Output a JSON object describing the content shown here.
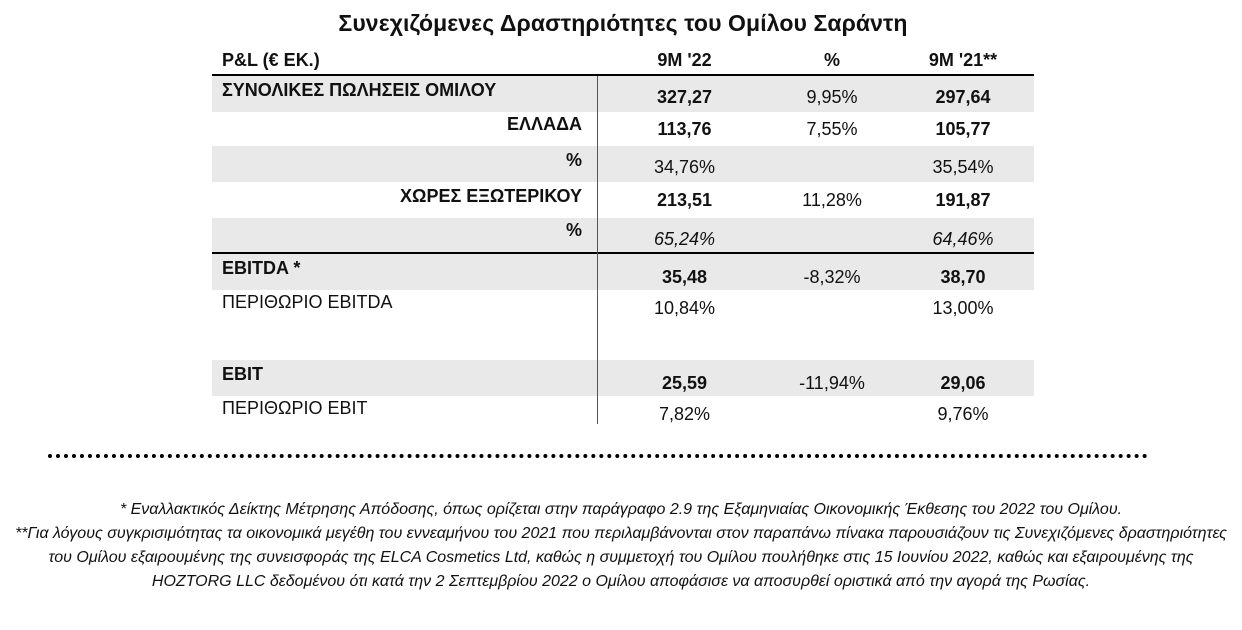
{
  "title": "Συνεχιζόμενες Δραστηριότητες του Ομίλου Σαράντη",
  "header": {
    "label": "P&L (€ ΕΚ.)",
    "col_a": "9M '22",
    "col_pct": "%",
    "col_b": "9M '21**"
  },
  "rows": [
    {
      "label": "ΣΥΝΟΛΙΚΕΣ ΠΩΛΗΣΕΙΣ ΟΜΙΛΟΥ",
      "a": "327,27",
      "pct": "9,95%",
      "b": "297,64"
    },
    {
      "label": "ΕΛΛΑΔΑ",
      "a": "113,76",
      "pct": "7,55%",
      "b": "105,77"
    },
    {
      "label": "%",
      "a": "34,76%",
      "pct": "",
      "b": "35,54%"
    },
    {
      "label": "ΧΩΡΕΣ ΕΞΩΤΕΡΙΚΟΥ",
      "a": "213,51",
      "pct": "11,28%",
      "b": "191,87"
    },
    {
      "label": "%",
      "a": "65,24%",
      "pct": "",
      "b": "64,46%"
    },
    {
      "label": "EBITDA *",
      "a": "35,48",
      "pct": "-8,32%",
      "b": "38,70"
    },
    {
      "label": "ΠΕΡΙΘΩΡΙΟ EBITDA",
      "a": "10,84%",
      "pct": "",
      "b": "13,00%"
    },
    {
      "label": "",
      "a": "",
      "pct": "",
      "b": ""
    },
    {
      "label": "EBIT",
      "a": "25,59",
      "pct": "-11,94%",
      "b": "29,06"
    },
    {
      "label": "ΠΕΡΙΘΩΡΙΟ EBIT",
      "a": "7,82%",
      "pct": "",
      "b": "9,76%"
    }
  ],
  "footnotes": [
    "* Εναλλακτικός Δείκτης Μέτρησης Απόδοσης, όπως ορίζεται στην παράγραφο 2.9 της Εξαμηνιαίας Οικονομικής Έκθεσης του 2022 του Ομίλου.",
    "**Για λόγους συγκρισιμότητας τα οικονομικά μεγέθη του εννεαμήνου του 2021 που περιλαμβάνονται στον παραπάνω πίνακα παρουσιάζουν τις Συνεχιζόμενες δραστηριότητες του Ομίλου εξαιρουμένης της συνεισφοράς της ELCA Cosmetics Ltd, καθώς η συμμετοχή του Ομίλου πουλήθηκε στις 15 Ιουνίου 2022, καθώς και εξαιρουμένης της HOZTORG LLC δεδομένου ότι κατά την 2 Σεπτεμβρίου 2022 ο Ομίλου αποφάσισε να αποσυρθεί οριστικά από την αγορά της Ρωσίας."
  ]
}
